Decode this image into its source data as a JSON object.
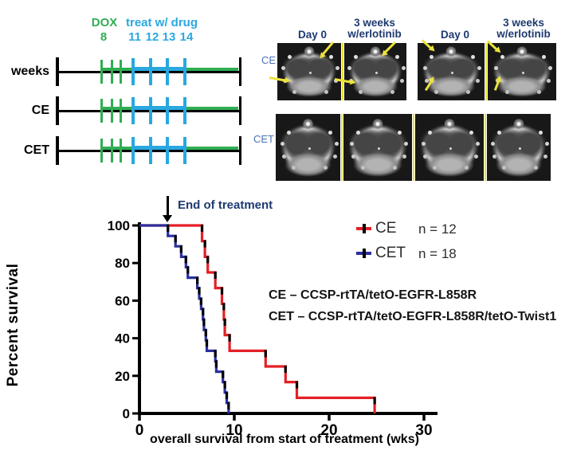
{
  "timeline": {
    "dox_label": "DOX",
    "dox_week": "8",
    "drug_label": "treat w/ drug",
    "drug_weeks": [
      "11",
      "12",
      "13",
      "14"
    ],
    "row_labels": [
      "weeks",
      "CE",
      "CET"
    ]
  },
  "mri": {
    "column_headers": [
      {
        "line1": "Day 0",
        "line2": ""
      },
      {
        "line1": "3 weeks",
        "line2": "w/erlotinib"
      },
      {
        "line1": "Day 0",
        "line2": ""
      },
      {
        "line1": "3 weeks",
        "line2": "w/erlotinib"
      }
    ],
    "row_labels": [
      "CE",
      "CET"
    ]
  },
  "legend": [
    {
      "label": "CE",
      "n": "n = 12",
      "color": "#e51f26"
    },
    {
      "label": "CET",
      "n": "n = 18",
      "color": "#2b2f9e"
    }
  ],
  "genotype_lines": [
    "CE – CCSP-rtTA/tetO-EGFR-L858R",
    "CET – CCSP-rtTA/tetO-EGFR-L858R/tetO-Twist1"
  ],
  "colors": {
    "dox_green": "#2fae53",
    "drug_blue": "#29a8e0",
    "header_navy": "#1e3a70",
    "mri_label_blue": "#4a72b8",
    "arrow_yellow": "#ece33b",
    "ce_red": "#e51f26",
    "cet_blue": "#2b2f9e"
  },
  "chart_data": {
    "type": "line",
    "subtype": "kaplan_meier_step",
    "title": "",
    "xlabel": "overall survival from start of treatment (wks)",
    "ylabel": "Percent survival",
    "xlim": [
      0,
      30
    ],
    "ylim": [
      0,
      100
    ],
    "xticks": [
      0,
      10,
      20,
      30
    ],
    "yticks": [
      0,
      20,
      40,
      60,
      80,
      100
    ],
    "grid": false,
    "legend_position": "right of plot, upper area",
    "annotation": {
      "text": "End of treatment",
      "x_weeks": 3
    },
    "series": [
      {
        "name": "CE",
        "n": 12,
        "color": "#e51f26",
        "events_week_survival": [
          [
            6.6,
            91.7
          ],
          [
            6.9,
            83.3
          ],
          [
            7.2,
            75.0
          ],
          [
            8.0,
            66.7
          ],
          [
            8.7,
            58.3
          ],
          [
            8.9,
            50.0
          ],
          [
            9.0,
            41.7
          ],
          [
            9.5,
            33.3
          ],
          [
            13.3,
            25.0
          ],
          [
            15.4,
            16.7
          ],
          [
            16.6,
            8.3
          ],
          [
            24.8,
            0
          ]
        ]
      },
      {
        "name": "CET",
        "n": 18,
        "color": "#2b2f9e",
        "events_week_survival": [
          [
            3.0,
            94.4
          ],
          [
            3.8,
            88.9
          ],
          [
            4.4,
            83.3
          ],
          [
            4.9,
            77.8
          ],
          [
            5.1,
            72.2
          ],
          [
            6.1,
            66.7
          ],
          [
            6.3,
            61.1
          ],
          [
            6.5,
            55.6
          ],
          [
            6.7,
            50.0
          ],
          [
            6.8,
            44.4
          ],
          [
            7.0,
            38.9
          ],
          [
            7.1,
            33.3
          ],
          [
            8.0,
            27.8
          ],
          [
            8.1,
            22.2
          ],
          [
            8.8,
            16.7
          ],
          [
            9.0,
            11.1
          ],
          [
            9.2,
            5.6
          ],
          [
            9.4,
            0
          ]
        ]
      }
    ]
  }
}
